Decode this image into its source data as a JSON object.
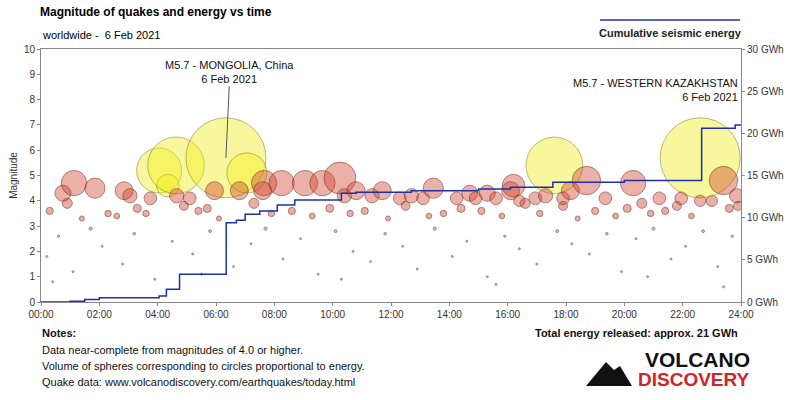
{
  "chart_data": {
    "type": "scatter",
    "title": "Magnitude of quakes and energy vs time",
    "subtitle": "worldwide -  6 Feb 2021",
    "y_label": "Magnitude",
    "xlim": [
      0,
      24
    ],
    "xticks": [
      {
        "value": 0,
        "label": "00:00"
      },
      {
        "value": 2,
        "label": "02:00"
      },
      {
        "value": 4,
        "label": "04:00"
      },
      {
        "value": 6,
        "label": "06:00"
      },
      {
        "value": 8,
        "label": "08:00"
      },
      {
        "value": 10,
        "label": "10:00"
      },
      {
        "value": 12,
        "label": "12:00"
      },
      {
        "value": 14,
        "label": "14:00"
      },
      {
        "value": 16,
        "label": "16:00"
      },
      {
        "value": 18,
        "label": "18:00"
      },
      {
        "value": 20,
        "label": "20:00"
      },
      {
        "value": 22,
        "label": "22:00"
      },
      {
        "value": 24,
        "label": "24:00"
      }
    ],
    "ylim": [
      0,
      10
    ],
    "yticks": [
      0,
      1,
      2,
      3,
      4,
      5,
      6,
      7,
      8,
      9,
      10
    ],
    "y2lim": [
      0,
      30
    ],
    "y2ticks": [
      {
        "value": 0,
        "label": "0 GWh"
      },
      {
        "value": 5,
        "label": "5 GWh"
      },
      {
        "value": 10,
        "label": "10 GWh"
      },
      {
        "value": 15,
        "label": "15 GWh"
      },
      {
        "value": 20,
        "label": "20 GWh"
      },
      {
        "value": 25,
        "label": "25 GWh"
      },
      {
        "value": 30,
        "label": "30 GWh"
      }
    ],
    "grid": false,
    "series": [
      {
        "type": "scatter",
        "marker": "circle",
        "color": "#b5604f",
        "x": [
          0.2,
          0.6,
          1.1,
          1.7,
          2.1,
          2.8,
          3.2,
          3.9,
          4.5,
          5.2,
          5.8,
          6.6,
          7.2,
          7.7,
          8.3,
          8.9,
          9.5,
          10.1,
          10.7,
          11.3,
          11.8,
          12.4,
          12.9,
          13.5,
          14.1,
          14.6,
          15.3,
          15.9,
          16.4,
          17.0,
          17.7,
          18.2,
          18.8,
          19.4,
          19.9,
          20.4,
          21.0,
          21.6,
          22.1,
          22.7,
          23.2,
          23.7,
          0.4,
          5.5,
          10.3,
          15.6,
          20.8,
          23.4
        ],
        "values": [
          1.8,
          2.6,
          1.2,
          2.9,
          2.2,
          1.5,
          2.7,
          0.9,
          2.4,
          1.9,
          2.8,
          1.4,
          2.3,
          2.9,
          1.7,
          2.5,
          1.1,
          2.8,
          2.0,
          1.6,
          2.7,
          2.2,
          1.3,
          2.9,
          1.8,
          2.4,
          1.0,
          2.6,
          2.1,
          1.5,
          2.8,
          2.3,
          1.9,
          2.7,
          1.2,
          2.5,
          2.9,
          1.7,
          2.2,
          2.8,
          1.4,
          2.6,
          0.8,
          1.1,
          0.9,
          0.7,
          1.0,
          0.6
        ]
      },
      {
        "type": "scatter",
        "marker": "circle",
        "color": "#c8402e",
        "x": [
          0.3,
          0.9,
          1.4,
          2.3,
          2.6,
          3.3,
          3.6,
          4.9,
          5.4,
          5.7,
          6.1,
          7.3,
          7.9,
          8.6,
          9.3,
          9.9,
          10.6,
          11.1,
          11.9,
          12.5,
          13.3,
          13.8,
          14.4,
          15.1,
          15.8,
          16.6,
          17.1,
          17.9,
          18.4,
          19.0,
          19.7,
          20.1,
          20.6,
          20.9,
          21.4,
          21.8,
          22.3,
          23.0,
          23.6,
          23.9
        ],
        "values": [
          3.6,
          3.9,
          3.3,
          3.5,
          3.4,
          3.7,
          3.5,
          3.8,
          3.6,
          3.7,
          3.3,
          3.9,
          3.5,
          3.6,
          3.4,
          3.7,
          3.5,
          3.6,
          3.3,
          3.8,
          3.4,
          3.5,
          3.7,
          3.6,
          3.4,
          3.9,
          3.5,
          3.8,
          3.3,
          3.6,
          3.4,
          3.7,
          3.9,
          3.5,
          3.6,
          3.8,
          3.4,
          4.0,
          3.7,
          3.8
        ]
      },
      {
        "type": "scatter",
        "marker": "circle",
        "color": "#f2ee1a",
        "x": [
          4.05,
          4.35,
          4.63,
          6.34,
          7.06,
          17.6,
          22.6
        ],
        "values": [
          5.2,
          4.6,
          5.4,
          5.7,
          5.1,
          5.4,
          5.7
        ]
      },
      {
        "type": "scatter",
        "marker": "circle",
        "color": "#d0452f",
        "x": [
          0.75,
          1.13,
          1.85,
          2.85,
          3.05,
          3.75,
          4.65,
          5.1,
          5.95,
          6.8,
          7.65,
          7.6,
          8.25,
          9.05,
          9.65,
          10.25,
          10.4,
          10.8,
          11.35,
          11.7,
          12.3,
          12.7,
          13.1,
          13.45,
          14.25,
          14.7,
          14.9,
          15.3,
          15.6,
          16.1,
          16.2,
          16.4,
          16.95,
          17.3,
          17.9,
          18.15,
          18.7,
          19.35,
          20.3,
          21.2,
          21.95,
          22.6,
          23.4,
          23.85
        ],
        "values": [
          4.3,
          4.7,
          4.5,
          4.4,
          4.2,
          4.1,
          4.2,
          4.1,
          4.4,
          4.4,
          4.7,
          4.4,
          4.7,
          4.7,
          4.7,
          4.9,
          4.2,
          4.4,
          4.2,
          4.4,
          4.1,
          4.2,
          4.1,
          4.5,
          4.1,
          4.3,
          4.1,
          4.3,
          4.1,
          4.4,
          4.6,
          4.0,
          4.1,
          4.2,
          4.1,
          4.4,
          4.8,
          4.1,
          4.7,
          4.1,
          4.1,
          4.0,
          4.8,
          4.2
        ]
      },
      {
        "name": "Cumulative seismic energy",
        "type": "line",
        "line_style": "step",
        "axis": "y2",
        "color": "#1f2fa8",
        "x": [
          0,
          1.0,
          1.5,
          2.0,
          4.05,
          4.3,
          4.75,
          6.35,
          6.7,
          7.0,
          7.5,
          8.1,
          8.7,
          10.3,
          10.8,
          12.7,
          15.0,
          16.1,
          17.55,
          20.0,
          22.65,
          23.8,
          24
        ],
        "values": [
          0,
          0.1,
          0.3,
          0.5,
          0.7,
          1.5,
          3.3,
          9.4,
          9.7,
          10.4,
          10.8,
          11.5,
          12.1,
          12.9,
          13.0,
          13.2,
          13.4,
          13.6,
          14.2,
          14.4,
          20.6,
          21.0,
          21.0
        ]
      }
    ],
    "annotations": [
      {
        "text": [
          "M5.7 - MONGOLIA, China",
          "6 Feb 2021"
        ],
        "x": 6.34,
        "y": 5.7
      },
      {
        "text": [
          "M5.7 - WESTERN KAZAKHSTAN",
          "6 Feb 2021"
        ],
        "x": 22.6,
        "y": 5.7
      }
    ],
    "total": "Total energy released: approx. 21 GWh",
    "notes": [
      "Notes:",
      "Data near-complete from magnitudes of 4.0 or higher.",
      "Volume of spheres corresponding to circles proportional to energy.",
      "Quake data: www.volcanodiscovery.com/earthquakes/today.html"
    ],
    "logo": [
      "VOLCANO",
      "DISCOVERY"
    ]
  }
}
